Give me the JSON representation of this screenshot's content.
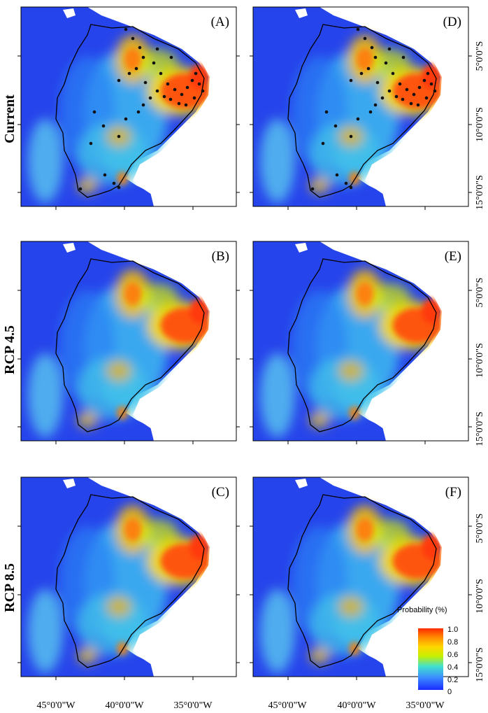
{
  "figure": {
    "row_labels": [
      "Current",
      "RCP 4.5",
      "RCP 8.5"
    ],
    "panels": [
      {
        "letter": "(A)",
        "scenario": "Current",
        "occurrences": true
      },
      {
        "letter": "(D)",
        "scenario": "Current",
        "occurrences": true
      },
      {
        "letter": "(B)",
        "scenario": "RCP 4.5",
        "occurrences": false
      },
      {
        "letter": "(E)",
        "scenario": "RCP 4.5",
        "occurrences": false
      },
      {
        "letter": "(C)",
        "scenario": "RCP 8.5",
        "occurrences": false
      },
      {
        "letter": "(F)",
        "scenario": "RCP 8.5",
        "occurrences": false
      }
    ],
    "longitude_ticks": [
      "45°0'0\"W",
      "40°0'0\"W",
      "35°0'0\"W"
    ],
    "latitude_ticks": [
      "5°0'0\"S",
      "10°0'0\"S",
      "15°0'0\"S"
    ],
    "legend": {
      "title": "Probability (%)",
      "ticks": [
        "1.0",
        "0.8",
        "0.6",
        "0.4",
        "0.2",
        "0"
      ],
      "colors": [
        "#ff2a00",
        "#ff8c00",
        "#ffd700",
        "#c8f000",
        "#40e0d0",
        "#3c8cff",
        "#1a2cff"
      ]
    },
    "colors": {
      "ocean": "#ffffff",
      "low": "#1f2fe8",
      "mid": "#3fc0f0",
      "high": "#ff3a10",
      "boundary": "#000000",
      "point": "#111111"
    }
  }
}
